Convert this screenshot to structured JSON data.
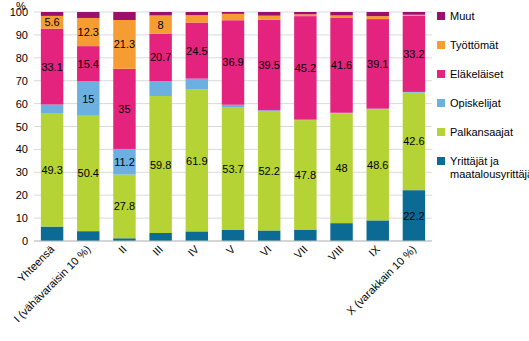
{
  "chart_data": {
    "type": "bar",
    "stacked": true,
    "ylabel": "%",
    "categories": [
      "Yhteensä",
      "I (vähävaraisin 10 %)",
      "II",
      "III",
      "IV",
      "V",
      "VI",
      "VII",
      "VIII",
      "IX",
      "X (varakkain 10 %)"
    ],
    "ylim": [
      0,
      100
    ],
    "yticks": [
      0,
      10,
      20,
      30,
      40,
      50,
      60,
      70,
      80,
      90,
      100
    ],
    "grid": true,
    "legend": "right",
    "data_labels": true,
    "series": [
      {
        "name": "Yrittäjät ja maatalousyrittäjät",
        "color": "#0b6b95",
        "values": [
          6.3,
          4.3,
          1.2,
          3.5,
          4.2,
          4.8,
          4.6,
          5.0,
          7.8,
          9.0,
          22.2
        ],
        "value_labels": [
          null,
          null,
          null,
          null,
          null,
          null,
          null,
          null,
          null,
          null,
          "22.2"
        ]
      },
      {
        "name": "Palkansaajat",
        "color": "#b5d334",
        "values": [
          49.3,
          50.4,
          27.8,
          59.8,
          61.9,
          53.7,
          52.2,
          47.8,
          48,
          48.6,
          42.6
        ],
        "value_labels": [
          "49.3",
          "50.4",
          "27.8",
          "59.8",
          "61.9",
          "53.7",
          "52.2",
          "47.8",
          "48",
          "48.6",
          "42.6"
        ]
      },
      {
        "name": "Opiskelijat",
        "color": "#6cb0e2",
        "values": [
          4.0,
          15,
          11.2,
          6.5,
          4.8,
          1.0,
          0.3,
          0.2,
          0.2,
          0.2,
          0.3
        ],
        "value_labels": [
          null,
          "15",
          "11.2",
          null,
          null,
          null,
          null,
          null,
          null,
          null,
          null
        ]
      },
      {
        "name": "Eläkeläiset",
        "color": "#e3237d",
        "values": [
          33.1,
          15.4,
          35,
          20.7,
          24.5,
          36.9,
          39.5,
          45.2,
          41.6,
          39.1,
          33.2
        ],
        "value_labels": [
          "33.1",
          "15.4",
          "35",
          "20.7",
          "24.5",
          "36.9",
          "39.5",
          "45.2",
          "41.6",
          "39.1",
          "33.2"
        ]
      },
      {
        "name": "Työttömät",
        "color": "#f59d33",
        "values": [
          5.6,
          12.3,
          21.3,
          8,
          3.2,
          2.8,
          1.8,
          0.8,
          0.9,
          1.3,
          0.5
        ],
        "value_labels": [
          "5.6",
          "12.3",
          "21.3",
          "8",
          null,
          null,
          null,
          null,
          null,
          null,
          null
        ]
      },
      {
        "name": "Muut",
        "color": "#9b0f6d",
        "values": [
          1.7,
          2.6,
          3.5,
          1.5,
          1.4,
          0.8,
          1.6,
          1.0,
          1.5,
          1.8,
          1.2
        ],
        "value_labels": [
          null,
          null,
          null,
          null,
          null,
          null,
          null,
          null,
          null,
          null,
          null
        ]
      }
    ]
  }
}
